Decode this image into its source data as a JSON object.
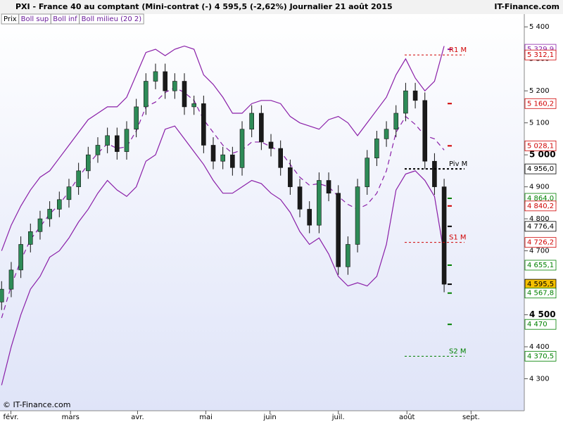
{
  "header": {
    "title": "PXI - France 40 au comptant (Mini-contrat  (-)    4 595,5 (-2,62%)    Journalier  21 août 2015",
    "site": "IT-Finance.com"
  },
  "legend": [
    "Prix",
    "Boll sup",
    "Boll inf",
    "Boll milieu (20 2)"
  ],
  "footer": "© IT-Finance.com",
  "chart_data": {
    "type": "candlestick",
    "x": [
      0,
      3,
      6,
      9,
      12,
      15,
      18,
      21,
      24,
      27,
      30,
      33,
      36,
      39,
      42,
      45,
      48,
      51,
      54,
      57,
      60,
      63,
      66,
      69,
      72,
      75,
      78,
      81,
      84,
      87,
      90,
      93,
      96,
      99,
      102,
      105,
      108,
      111,
      114,
      117,
      120,
      123,
      126,
      129,
      132,
      135,
      138
    ],
    "open": [
      4540,
      4580,
      4640,
      4720,
      4760,
      4800,
      4830,
      4860,
      4900,
      4950,
      5000,
      5030,
      5060,
      5010,
      5080,
      5150,
      5230,
      5260,
      5200,
      5230,
      5150,
      5160,
      5030,
      4980,
      5000,
      4960,
      5080,
      5130,
      5040,
      5020,
      4960,
      4900,
      4830,
      4780,
      4920,
      4880,
      4650,
      4720,
      4900,
      4990,
      5050,
      5080,
      5130,
      5200,
      5170,
      4980,
      4900
    ],
    "high": [
      4605,
      4665,
      4745,
      4785,
      4825,
      4855,
      4885,
      4925,
      4975,
      5025,
      5055,
      5085,
      5085,
      5105,
      5175,
      5255,
      5285,
      5285,
      5255,
      5255,
      5185,
      5185,
      5055,
      5025,
      5025,
      5105,
      5155,
      5155,
      5065,
      5045,
      4985,
      4925,
      4855,
      4945,
      4945,
      4905,
      4745,
      4925,
      5015,
      5075,
      5105,
      5155,
      5225,
      5225,
      5195,
      5005,
      4925
    ],
    "low": [
      4515,
      4555,
      4615,
      4695,
      4735,
      4775,
      4805,
      4835,
      4875,
      4925,
      4975,
      5005,
      4985,
      4985,
      5055,
      5125,
      5205,
      5175,
      5175,
      5125,
      5125,
      5005,
      4955,
      4955,
      4935,
      4935,
      5055,
      5015,
      4995,
      4935,
      4875,
      4805,
      4755,
      4755,
      4855,
      4625,
      4625,
      4695,
      4875,
      4965,
      5025,
      5055,
      5105,
      5145,
      4955,
      4875,
      4570.5
    ],
    "close": [
      4580,
      4640,
      4720,
      4760,
      4800,
      4830,
      4860,
      4900,
      4950,
      5000,
      5030,
      5060,
      5010,
      5080,
      5150,
      5230,
      5260,
      5200,
      5230,
      5150,
      5160,
      5030,
      4980,
      5000,
      4960,
      5080,
      5130,
      5040,
      5020,
      4960,
      4900,
      4830,
      4780,
      4920,
      4880,
      4650,
      4720,
      4900,
      4990,
      5050,
      5080,
      5130,
      5200,
      5170,
      4980,
      4900,
      4595.5
    ],
    "up_color": "#2e8b57",
    "down_color": "#1a1a1a",
    "bands": [
      {
        "name": "Boll sup",
        "color": "#8a1fa8",
        "dashed": false,
        "values": [
          4700,
          4780,
          4840,
          4890,
          4930,
          4950,
          4990,
          5030,
          5070,
          5110,
          5130,
          5150,
          5150,
          5180,
          5250,
          5320,
          5330,
          5310,
          5330,
          5340,
          5330,
          5250,
          5220,
          5180,
          5130,
          5130,
          5160,
          5170,
          5170,
          5160,
          5120,
          5100,
          5090,
          5080,
          5110,
          5120,
          5100,
          5060,
          5100,
          5140,
          5180,
          5250,
          5300,
          5240,
          5200,
          5230,
          5340
        ]
      },
      {
        "name": "Boll inf",
        "color": "#8a1fa8",
        "dashed": false,
        "values": [
          4280,
          4400,
          4500,
          4580,
          4620,
          4680,
          4700,
          4740,
          4790,
          4830,
          4880,
          4920,
          4890,
          4870,
          4900,
          4980,
          5000,
          5080,
          5090,
          5050,
          5010,
          4970,
          4920,
          4880,
          4880,
          4900,
          4920,
          4910,
          4880,
          4860,
          4820,
          4760,
          4720,
          4740,
          4690,
          4620,
          4590,
          4600,
          4590,
          4620,
          4720,
          4890,
          4940,
          4950,
          4920,
          4870,
          4690
        ]
      },
      {
        "name": "Boll milieu (20 2)",
        "color": "#8a1fa8",
        "dashed": true,
        "values": [
          4490,
          4590,
          4670,
          4735,
          4775,
          4815,
          4845,
          4885,
          4930,
          4970,
          5005,
          5035,
          5020,
          5025,
          5075,
          5150,
          5165,
          5195,
          5210,
          5195,
          5170,
          5110,
          5070,
          5030,
          5005,
          5015,
          5040,
          5040,
          5025,
          5010,
          4970,
          4930,
          4905,
          4910,
          4900,
          4870,
          4845,
          4830,
          4845,
          4880,
          4950,
          5070,
          5120,
          5095,
          5060,
          5050,
          5015
        ]
      }
    ],
    "xlim": [
      -0.5,
      163
    ],
    "xticks": [
      {
        "value": 2.9,
        "label": "févr."
      },
      {
        "value": 21.5,
        "label": "mars"
      },
      {
        "value": 42.4,
        "label": "avr."
      },
      {
        "value": 63.7,
        "label": "mai"
      },
      {
        "value": 83.7,
        "label": "juin"
      },
      {
        "value": 105,
        "label": "juil."
      },
      {
        "value": 126.4,
        "label": "août"
      },
      {
        "value": 146.4,
        "label": "sept."
      }
    ],
    "ylim": [
      4200,
      5440
    ],
    "yticks": [
      {
        "value": 5400,
        "label": "5 400"
      },
      {
        "value": 5300,
        "label": "5 300"
      },
      {
        "value": 5200,
        "label": "5 200"
      },
      {
        "value": 5100,
        "label": "5 100"
      },
      {
        "value": 5000,
        "label": "5 000"
      },
      {
        "value": 4900,
        "label": "4 900"
      },
      {
        "value": 4800,
        "label": "4 800"
      },
      {
        "value": 4700,
        "label": "4 700"
      },
      {
        "value": 4500,
        "label": "4 500"
      },
      {
        "value": 4400,
        "label": "4 400"
      },
      {
        "value": 4300,
        "label": "4 300"
      }
    ],
    "levels": [
      {
        "value": 5329.9,
        "label": "5 329,9",
        "color": "#8a1fa8"
      },
      {
        "value": 5312.1,
        "label": "5 312,1",
        "color": "#d00000",
        "pivot": "R1 M"
      },
      {
        "value": 5160.2,
        "label": "5 160,2",
        "color": "#d00000"
      },
      {
        "value": 5028.1,
        "label": "5 028,1",
        "color": "#d00000"
      },
      {
        "value": 4956.0,
        "label": "4 956,0",
        "color": "#000000",
        "pivot": "Piv M"
      },
      {
        "value": 4864.0,
        "label": "4 864,0",
        "color": "#008000"
      },
      {
        "value": 4840.2,
        "label": "4 840,2",
        "color": "#d00000"
      },
      {
        "value": 4776.4,
        "label": "4 776,4",
        "color": "#000000"
      },
      {
        "value": 4726.2,
        "label": "4 726,2",
        "color": "#d00000",
        "pivot": "S1 M"
      },
      {
        "value": 4655.1,
        "label": "4 655,1",
        "color": "#008000"
      },
      {
        "value": 4595.5,
        "label": "4 595,5",
        "color": "#000000",
        "highlight": "#f5c000"
      },
      {
        "value": 4567.8,
        "label": "4 567,8",
        "color": "#008000"
      },
      {
        "value": 4470,
        "label": "4 470",
        "color": "#008000"
      },
      {
        "value": 4370.5,
        "label": "4 370,5",
        "color": "#008000",
        "pivot": "S2 M"
      }
    ]
  }
}
